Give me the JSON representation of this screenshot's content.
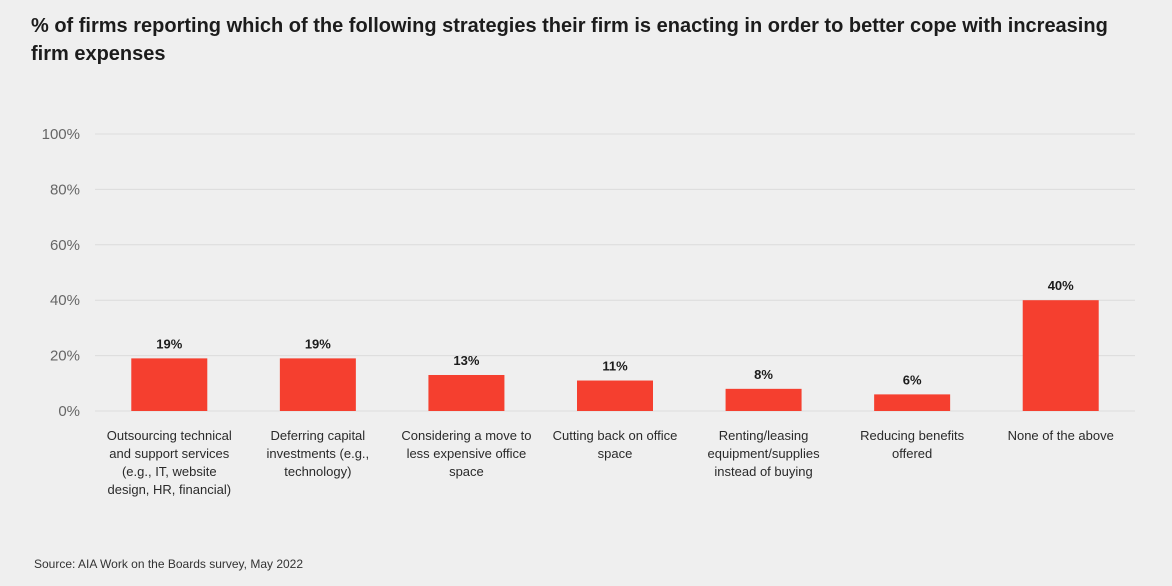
{
  "chart_data": {
    "type": "bar",
    "title": "% of firms reporting which of the following strategies their firm is enacting in order to better cope with increasing firm expenses",
    "categories": [
      [
        "Outsourcing technical",
        "and support services",
        "(e.g., IT, website",
        "design, HR, financial)"
      ],
      [
        "Deferring capital",
        "investments (e.g.,",
        "technology)"
      ],
      [
        "Considering a move to",
        "less expensive office",
        "space"
      ],
      [
        "Cutting back on office",
        "space"
      ],
      [
        "Renting/leasing",
        "equipment/supplies",
        "instead of buying"
      ],
      [
        "Reducing benefits",
        "offered"
      ],
      [
        "None of the above"
      ]
    ],
    "values": [
      19,
      19,
      13,
      11,
      8,
      6,
      40
    ],
    "data_labels": [
      "19%",
      "19%",
      "13%",
      "11%",
      "8%",
      "6%",
      "40%"
    ],
    "ylim": [
      0,
      100
    ],
    "y_ticks": [
      0,
      20,
      40,
      60,
      80,
      100
    ],
    "y_tick_labels": [
      "0%",
      "20%",
      "40%",
      "60%",
      "80%",
      "100%"
    ],
    "xlabel": "",
    "ylabel": "",
    "grid": true,
    "legend": "none",
    "bar_color": "#f53f2f"
  },
  "source": "Source: AIA Work on the Boards survey, May 2022"
}
